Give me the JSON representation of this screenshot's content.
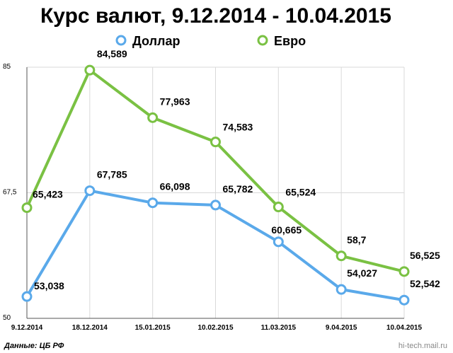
{
  "chart_data": {
    "type": "line",
    "title": "Курс валют, 9.12.2014 - 10.04.2015",
    "categories": [
      "9.12.2014",
      "18.12.2014",
      "15.01.2015",
      "10.02.2015",
      "11.03.2015",
      "9.04.2015",
      "10.04.2015"
    ],
    "series": [
      {
        "name": "Доллар",
        "color": "#5aa9ea",
        "values": [
          53.038,
          67.785,
          66.098,
          65.782,
          60.665,
          54.027,
          52.542
        ],
        "labels": [
          "53,038",
          "67,785",
          "66,098",
          "65,782",
          "60,665",
          "54,027",
          "52,542"
        ]
      },
      {
        "name": "Евро",
        "color": "#7ac143",
        "values": [
          65.423,
          84.589,
          77.963,
          74.583,
          65.524,
          58.7,
          56.525
        ],
        "labels": [
          "65,423",
          "84,589",
          "77,963",
          "74,583",
          "65,524",
          "58,7",
          "56,525"
        ]
      }
    ],
    "ylim": [
      50,
      85
    ],
    "yticks": [
      50,
      67.5,
      85
    ],
    "ytick_labels": [
      "50",
      "67,5",
      "85"
    ],
    "grid": true,
    "legend_position": "top-center"
  },
  "source": "Данные: ЦБ РФ",
  "watermark": "hi-tech.mail.ru"
}
